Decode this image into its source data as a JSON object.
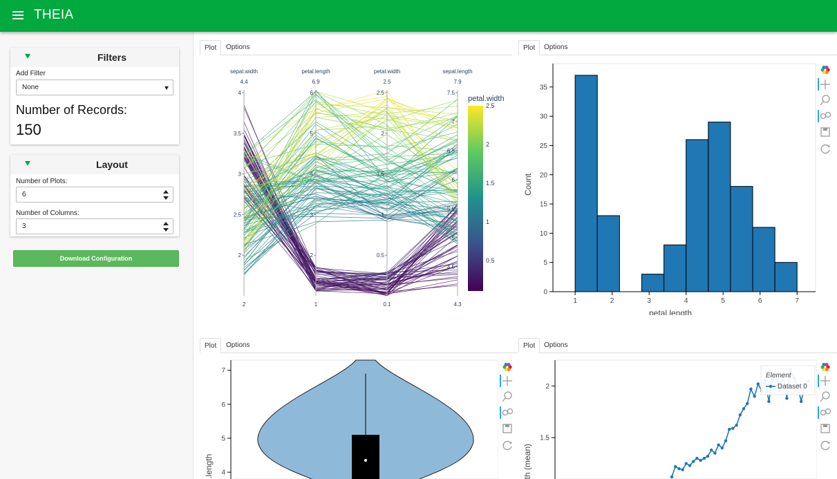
{
  "app": {
    "title": "THEIA"
  },
  "filters": {
    "title": "Filters",
    "add_filter_label": "Add Filter",
    "add_filter_value": "None",
    "records_label": "Number of Records:",
    "records_value": "150"
  },
  "layout": {
    "title": "Layout",
    "plots_label": "Number of Plots:",
    "plots_value": "6",
    "columns_label": "Number of Columns:",
    "columns_value": "3"
  },
  "download_label": "Download Configuration",
  "tabs": {
    "plot": "Plot",
    "options": "Options"
  },
  "colors": {
    "accent": "#01a93e",
    "bar": "#1f77b4",
    "violin": "#8fb9d9",
    "button": "#5cb85c"
  },
  "toolbar_icons": [
    "bokeh-logo-icon",
    "pan-icon",
    "box-zoom-icon",
    "wheel-zoom-icon",
    "save-icon",
    "reset-icon"
  ],
  "chart_data": [
    {
      "type": "parallel-coordinates",
      "axes": [
        {
          "name": "sepal.width",
          "max": "4.4",
          "min": "2",
          "ticks": [
            "4",
            "3.5",
            "3",
            "2.5",
            "2"
          ]
        },
        {
          "name": "petal.length",
          "max": "6.9",
          "min": "1",
          "ticks": [
            "6",
            "5",
            "4",
            "3",
            "2"
          ]
        },
        {
          "name": "petal.width",
          "max": "2.5",
          "min": "0.1",
          "ticks": [
            "2.5",
            "2",
            "1.5",
            "1",
            "0.5"
          ]
        },
        {
          "name": "sepal.length",
          "max": "7.9",
          "min": "4.3",
          "ticks": [
            "7.5",
            "7",
            "6.5",
            "6",
            "5.5",
            "5",
            "4.5"
          ]
        }
      ],
      "colorbar": {
        "title": "petal.width",
        "ticks": [
          "2.5",
          "2",
          "1.5",
          "1",
          "0.5"
        ]
      }
    },
    {
      "type": "bar",
      "xlabel": "petal.length",
      "ylabel": "Count",
      "bins": [
        [
          1,
          1.6,
          37
        ],
        [
          1.6,
          2.2,
          13
        ],
        [
          2.2,
          2.8,
          0
        ],
        [
          2.8,
          3.4,
          3
        ],
        [
          3.4,
          4.0,
          8
        ],
        [
          4.0,
          4.6,
          26
        ],
        [
          4.6,
          5.2,
          29
        ],
        [
          5.2,
          5.8,
          18
        ],
        [
          5.8,
          6.4,
          11
        ],
        [
          6.4,
          7.0,
          5
        ]
      ],
      "xticks": [
        "1",
        "2",
        "3",
        "4",
        "5",
        "6",
        "7"
      ],
      "yticks": [
        "0",
        "5",
        "10",
        "15",
        "20",
        "25",
        "30",
        "35"
      ],
      "xlim": [
        0.4,
        7.5
      ],
      "ylim": [
        0,
        39
      ]
    },
    {
      "type": "violin",
      "ylabel": "l.length",
      "yticks": [
        "7",
        "6",
        "5",
        "4"
      ],
      "ylim": [
        3.8,
        7.3
      ],
      "box": {
        "q1": 4.0,
        "q3": 5.1,
        "median": 4.35,
        "whisker_high": 6.9
      }
    },
    {
      "type": "line",
      "ylabel": "dth (mean)",
      "legend_title": "Element",
      "series": [
        {
          "name": "Dataset 0",
          "values": [
            1.12,
            1.22,
            1.2,
            1.19,
            1.25,
            1.23,
            1.27,
            1.3,
            1.28,
            1.3,
            1.32,
            1.38,
            1.35,
            1.43,
            1.4,
            1.47,
            1.58,
            1.59,
            1.62,
            1.72,
            1.78,
            1.83,
            1.97,
            1.9,
            2.02,
            1.95,
            2.05,
            1.85,
            2.06,
            2.1,
            1.95,
            2.1,
            1.88,
            2.16,
            2.08,
            2.0,
            1.85,
            2.02,
            2.05
          ]
        }
      ],
      "yticks": [
        "2",
        "1.5"
      ],
      "ylim": [
        1.1,
        2.25
      ]
    }
  ]
}
